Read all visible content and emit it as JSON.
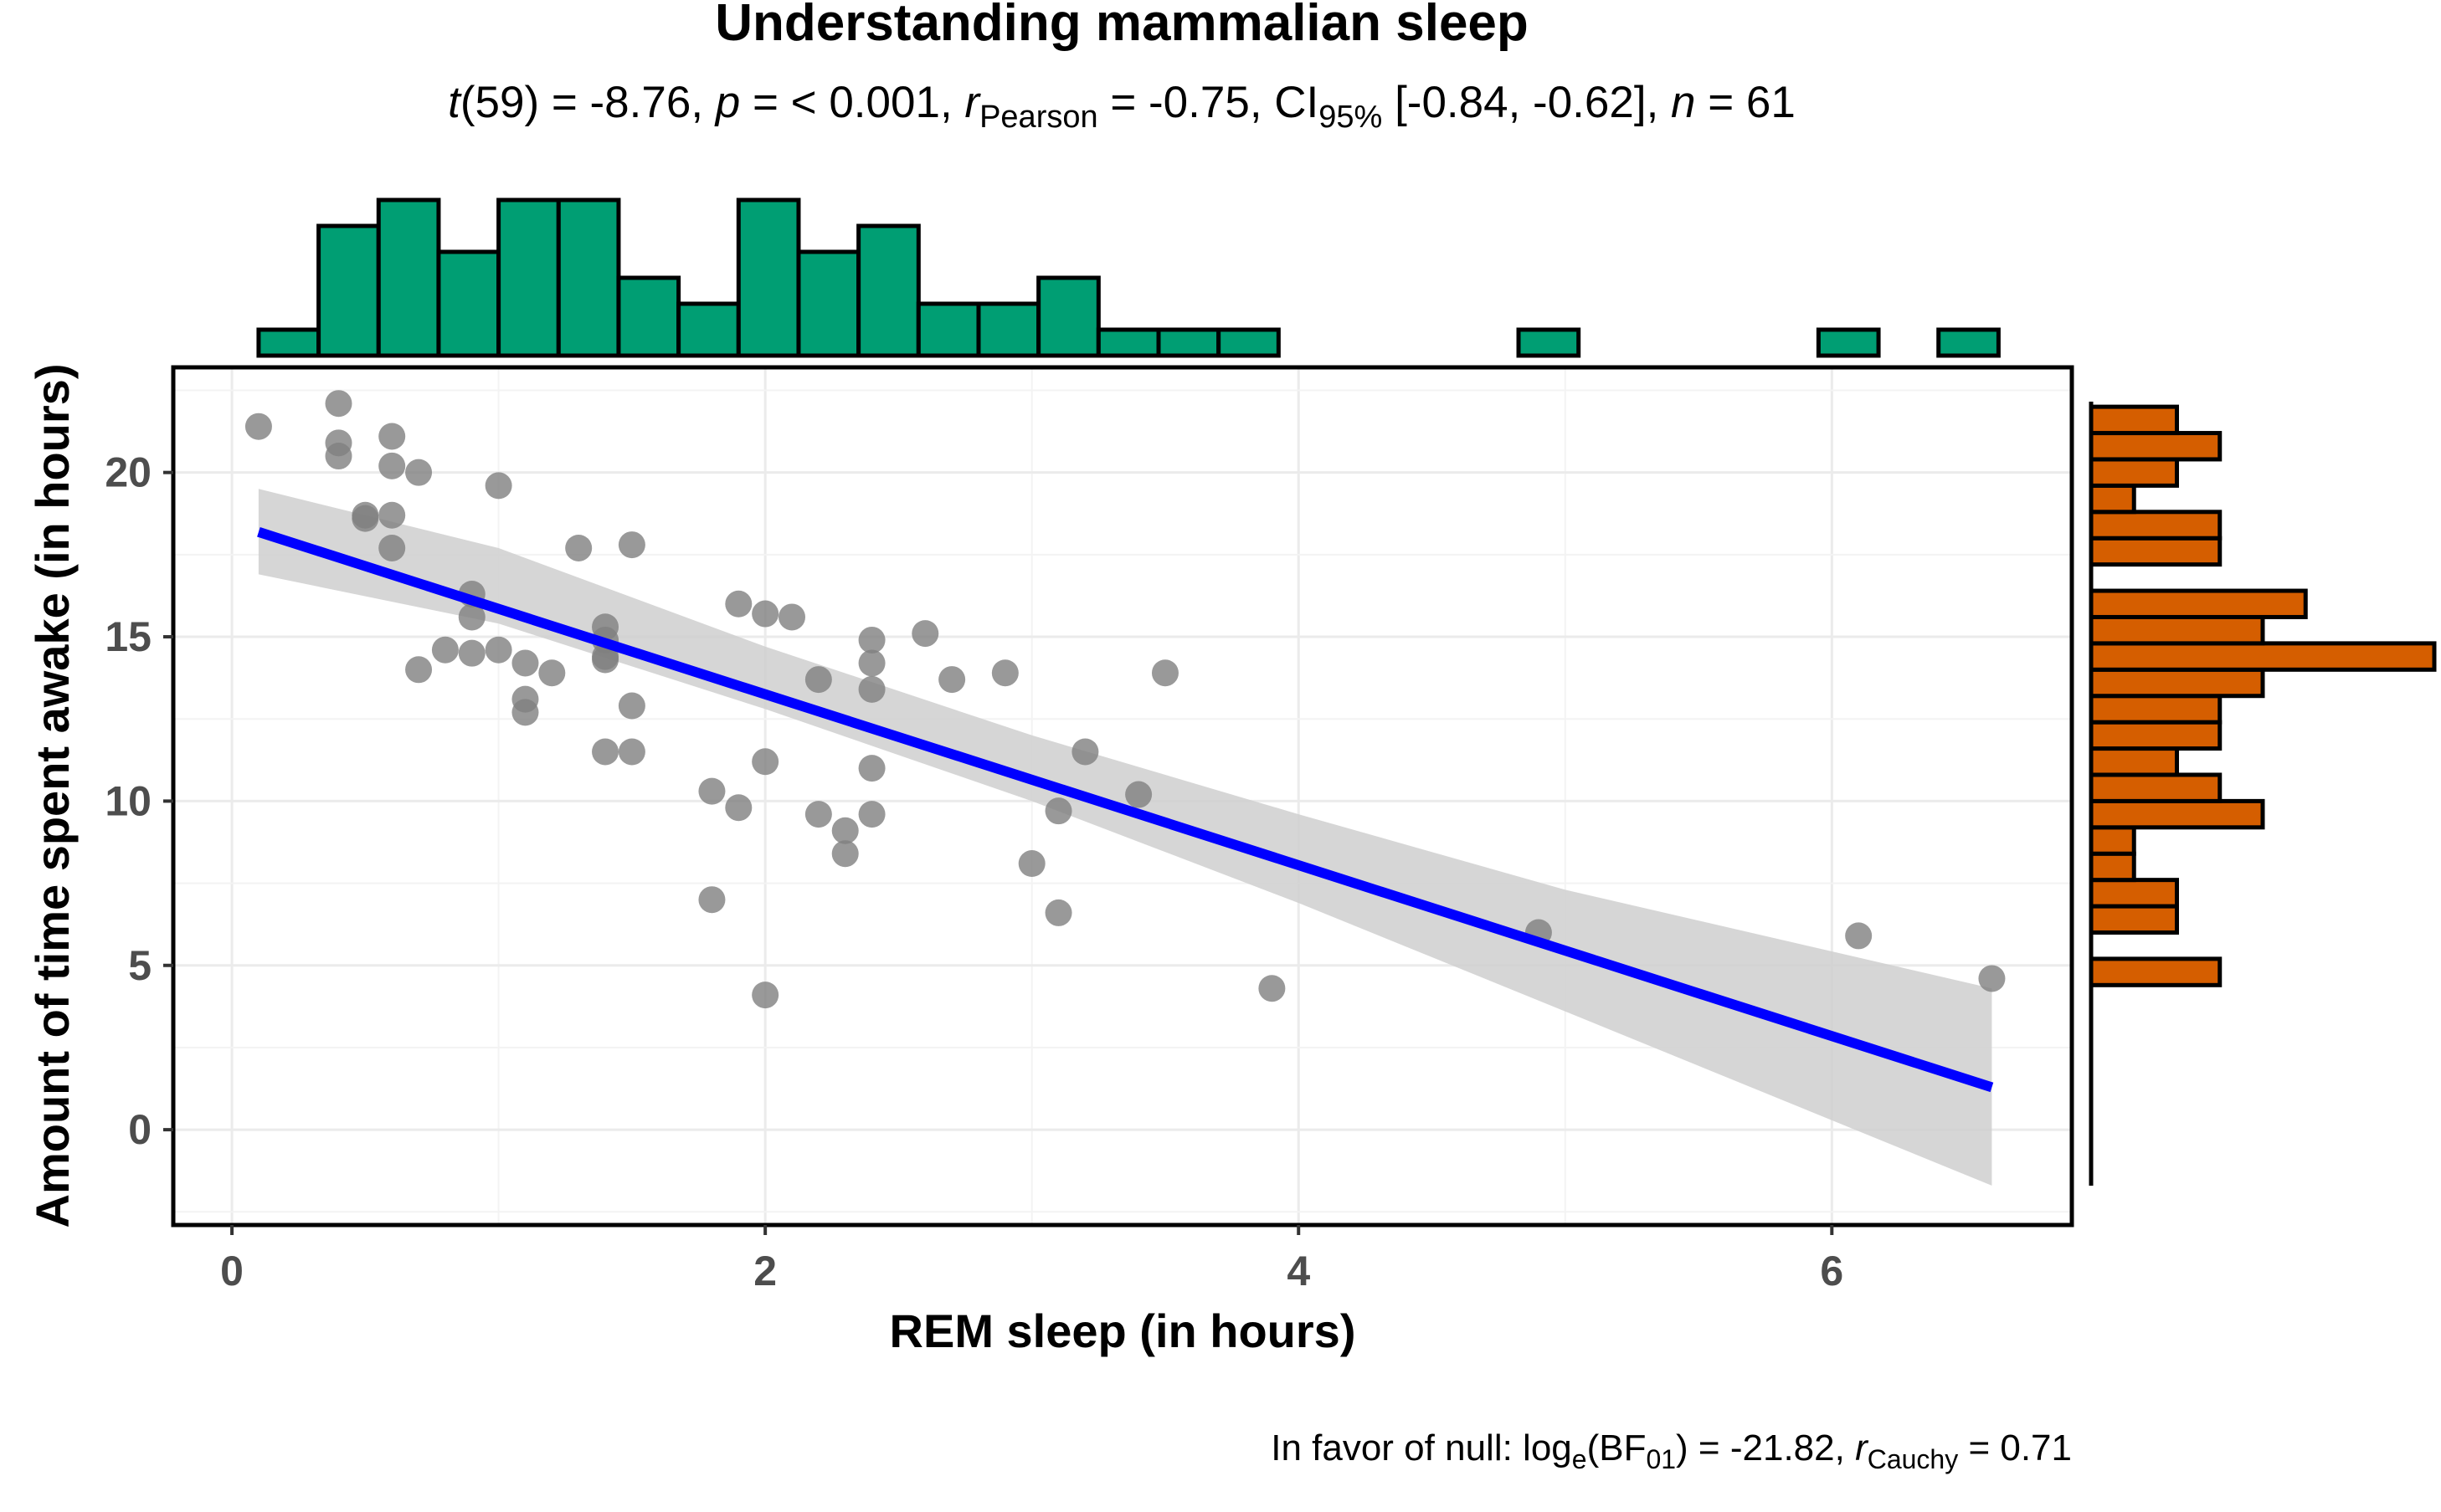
{
  "chart_data": {
    "type": "scatter",
    "title": "Understanding mammalian sleep",
    "subtitle": {
      "t_label": "t",
      "df": "(59)",
      "t_value": " = -8.76, ",
      "p_label": "p",
      "p_value": " = < 0.001, ",
      "r_label": "r",
      "r_sub": "Pearson",
      "r_value": " = -0.75, CI",
      "ci_sub": "95%",
      "ci_value": " [-0.84, -0.62], ",
      "n_label": "n",
      "n_value": " = 61"
    },
    "caption": {
      "lead": "In favor of null: log",
      "log_sub": "e",
      "bf": "(BF",
      "bf_sub": "01",
      "bf_value": ") = -21.82, ",
      "r_label": "r",
      "r_sub": "Cauchy",
      "r_value": " = 0.71"
    },
    "xlabel": "REM sleep (in hours)",
    "ylabel": "Amount of time spent awake (in hours)",
    "xlim": [
      -0.22,
      6.9
    ],
    "ylim": [
      -2.9,
      23.2
    ],
    "x_ticks": [
      0,
      2,
      4,
      6
    ],
    "y_ticks": [
      0,
      5,
      10,
      15,
      20
    ],
    "point_color": "#808080",
    "line_color": "#0000ff",
    "band_color": "#cfcfcf",
    "x_hist_color": "#009e73",
    "y_hist_color": "#d55e00",
    "points": [
      [
        0.1,
        21.4
      ],
      [
        0.4,
        22.1
      ],
      [
        0.4,
        20.9
      ],
      [
        0.4,
        20.5
      ],
      [
        0.6,
        21.1
      ],
      [
        0.6,
        20.2
      ],
      [
        0.7,
        20.0
      ],
      [
        0.5,
        18.7
      ],
      [
        0.5,
        18.6
      ],
      [
        0.6,
        18.7
      ],
      [
        0.6,
        17.7
      ],
      [
        1.0,
        19.6
      ],
      [
        1.3,
        17.7
      ],
      [
        1.5,
        17.8
      ],
      [
        0.9,
        16.3
      ],
      [
        0.9,
        15.6
      ],
      [
        0.8,
        14.6
      ],
      [
        0.9,
        14.5
      ],
      [
        1.0,
        14.6
      ],
      [
        0.7,
        14.0
      ],
      [
        1.1,
        14.2
      ],
      [
        1.2,
        13.9
      ],
      [
        1.1,
        13.1
      ],
      [
        1.1,
        12.7
      ],
      [
        1.4,
        15.3
      ],
      [
        1.4,
        14.9
      ],
      [
        1.4,
        14.4
      ],
      [
        1.4,
        14.3
      ],
      [
        1.5,
        12.9
      ],
      [
        1.4,
        11.5
      ],
      [
        1.5,
        11.5
      ],
      [
        1.9,
        16.0
      ],
      [
        2.0,
        15.7
      ],
      [
        2.1,
        15.6
      ],
      [
        1.8,
        10.3
      ],
      [
        1.9,
        9.8
      ],
      [
        2.0,
        11.2
      ],
      [
        1.8,
        7.0
      ],
      [
        2.0,
        4.1
      ],
      [
        2.2,
        13.7
      ],
      [
        2.4,
        14.9
      ],
      [
        2.4,
        14.2
      ],
      [
        2.4,
        13.4
      ],
      [
        2.6,
        15.1
      ],
      [
        2.7,
        13.7
      ],
      [
        2.9,
        13.9
      ],
      [
        2.2,
        9.6
      ],
      [
        2.3,
        9.1
      ],
      [
        2.3,
        8.4
      ],
      [
        2.4,
        11.0
      ],
      [
        2.4,
        9.6
      ],
      [
        3.2,
        11.5
      ],
      [
        3.1,
        9.7
      ],
      [
        3.0,
        8.1
      ],
      [
        3.1,
        6.6
      ],
      [
        3.4,
        10.2
      ],
      [
        3.5,
        13.9
      ],
      [
        3.9,
        4.3
      ],
      [
        4.9,
        6.0
      ],
      [
        6.1,
        5.9
      ],
      [
        6.6,
        4.6
      ]
    ],
    "regression": {
      "intercept": 18.45,
      "slope": -2.6,
      "x_range": [
        0.1,
        6.6
      ]
    },
    "confidence_band": {
      "x": [
        0.1,
        1.0,
        2.0,
        3.0,
        4.0,
        5.0,
        6.6
      ],
      "upper": [
        19.5,
        17.7,
        14.7,
        12.0,
        9.6,
        7.3,
        4.3
      ],
      "lower": [
        16.9,
        15.4,
        12.8,
        10.0,
        6.9,
        3.6,
        -1.7
      ]
    },
    "x_histogram": {
      "bin_edges": [
        0.1,
        0.325,
        0.55,
        0.775,
        1.0,
        1.225,
        1.45,
        1.675,
        1.9,
        2.125,
        2.35,
        2.575,
        2.8,
        3.025,
        3.25,
        3.475,
        3.7,
        3.925,
        4.15,
        4.375,
        4.6,
        4.825,
        5.05,
        5.275,
        5.5,
        5.725,
        5.95,
        6.175,
        6.4,
        6.625
      ],
      "counts": [
        1,
        5,
        6,
        4,
        6,
        6,
        3,
        2,
        6,
        4,
        5,
        2,
        2,
        3,
        1,
        1,
        1,
        0,
        0,
        0,
        0,
        1,
        0,
        0,
        0,
        0,
        1,
        0,
        1
      ]
    },
    "y_histogram": {
      "bin_edges": [
        4.4,
        5.2,
        6.0,
        6.8,
        7.6,
        8.4,
        9.2,
        10.0,
        10.8,
        11.6,
        12.4,
        13.2,
        14.0,
        14.8,
        15.6,
        16.4,
        17.2,
        18.0,
        18.8,
        19.6,
        20.4,
        21.2,
        22.0
      ],
      "counts": [
        3,
        0,
        2,
        2,
        1,
        1,
        4,
        3,
        2,
        3,
        3,
        4,
        8,
        4,
        5,
        0,
        3,
        3,
        1,
        2,
        3,
        2
      ]
    }
  }
}
